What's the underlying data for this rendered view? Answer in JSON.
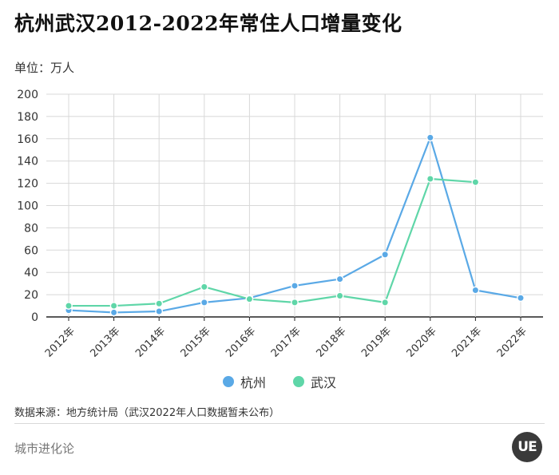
{
  "header": {
    "title": "杭州武汉2012-2022年常住人口增量变化",
    "unit": "单位：万人"
  },
  "footer": {
    "source": "数据来源：地方统计局（武汉2022年人口数据暂未公布）",
    "brand": "城市进化论",
    "logo_text": "UE"
  },
  "colors": {
    "hangzhou": "#5aa9e6",
    "wuhan": "#5fd6a8",
    "grid": "#d8d8d8",
    "axis": "#222222"
  },
  "chart_data": {
    "type": "line",
    "categories": [
      "2012年",
      "2013年",
      "2014年",
      "2015年",
      "2016年",
      "2017年",
      "2018年",
      "2019年",
      "2020年",
      "2021年",
      "2022年"
    ],
    "series": [
      {
        "name": "杭州",
        "values": [
          6,
          4,
          5,
          13,
          17,
          28,
          34,
          56,
          161,
          24,
          17
        ],
        "color": "#5aa9e6"
      },
      {
        "name": "武汉",
        "values": [
          10,
          10,
          12,
          27,
          16,
          13,
          19,
          13,
          124,
          121,
          null
        ],
        "color": "#5fd6a8"
      }
    ],
    "ylim": [
      0,
      200
    ],
    "yticks": [
      0,
      20,
      40,
      60,
      80,
      100,
      120,
      140,
      160,
      180,
      200
    ],
    "grid": true,
    "legend": "bottom-center"
  }
}
